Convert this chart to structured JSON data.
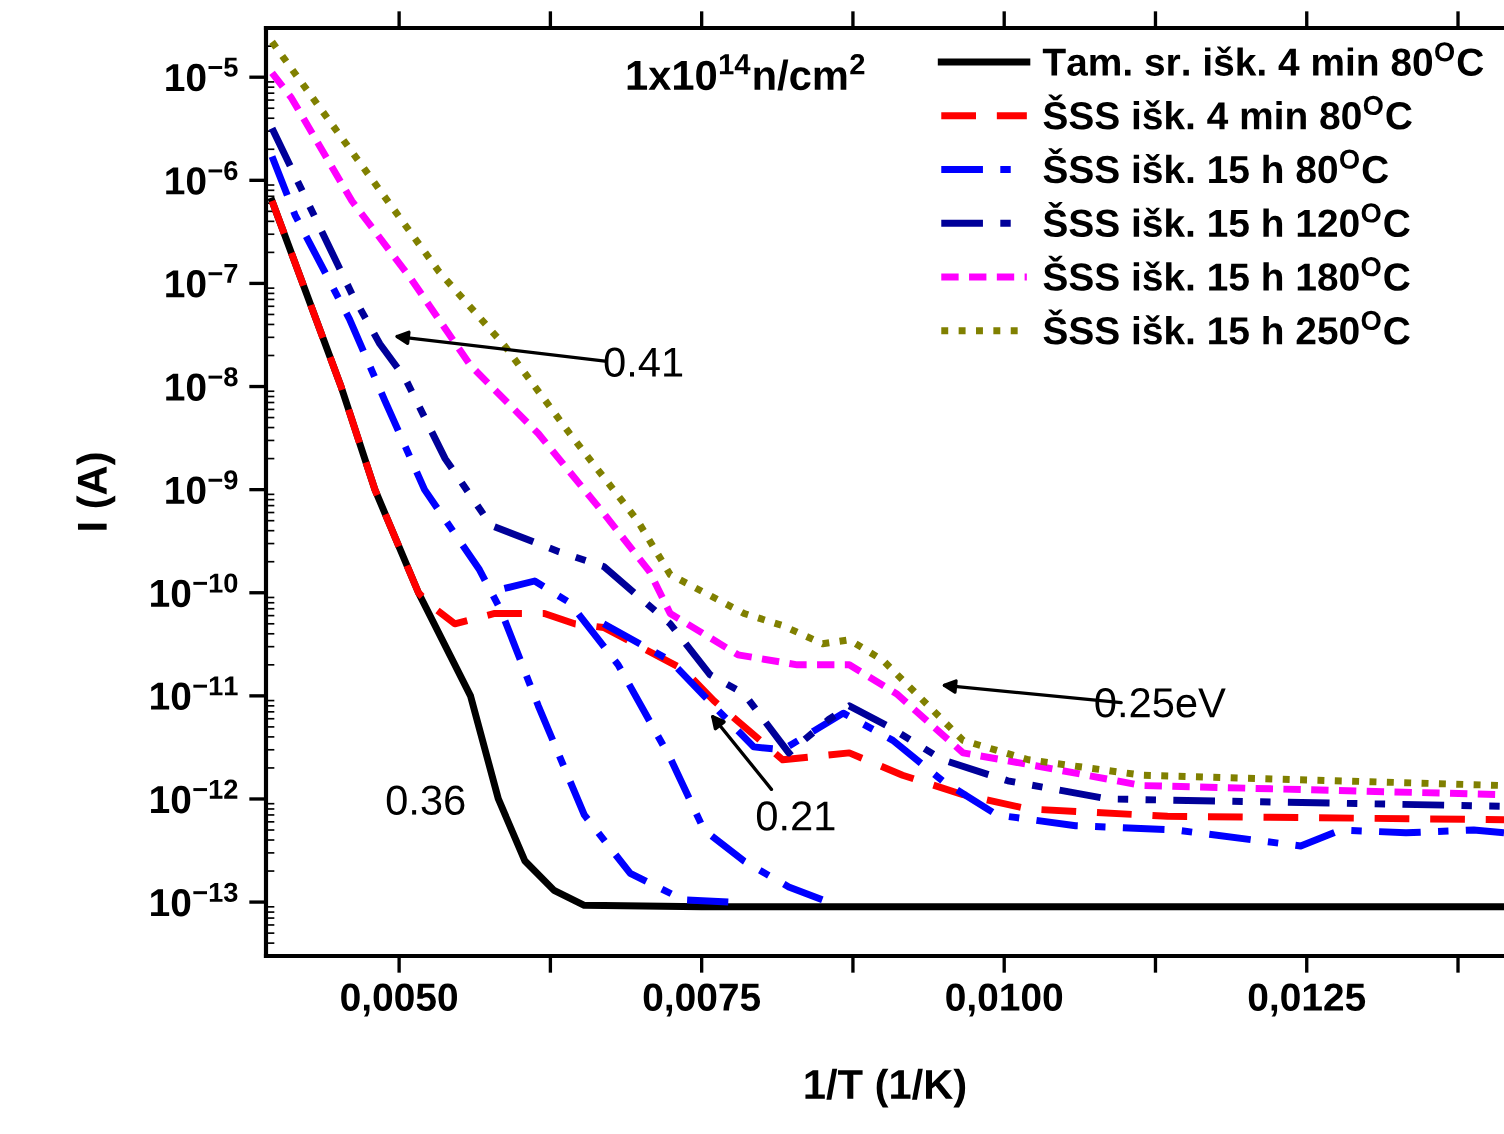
{
  "chart_data": {
    "type": "line",
    "xlabel": "1/T (1/K)",
    "ylabel": "I (A)",
    "log": "y",
    "xlim": [
      0.0039,
      0.01413
    ],
    "ylim": [
      3e-14,
      3e-05
    ],
    "xticks": [
      {
        "value": 0.005,
        "label": "0,0050"
      },
      {
        "value": 0.00625,
        "label": null
      },
      {
        "value": 0.0075,
        "label": "0,0075"
      },
      {
        "value": 0.00875,
        "label": null
      },
      {
        "value": 0.01,
        "label": "0,0100"
      },
      {
        "value": 0.01125,
        "label": null
      },
      {
        "value": 0.0125,
        "label": "0,0125"
      },
      {
        "value": 0.01375,
        "label": null
      }
    ],
    "yticks": [
      {
        "value": 1e-13,
        "label": "10$^{−13}$"
      },
      {
        "value": 1e-12,
        "label": "10$^{−12}$"
      },
      {
        "value": 1e-11,
        "label": "10$^{−11}$"
      },
      {
        "value": 1e-10,
        "label": "10$^{−10}$"
      },
      {
        "value": 1e-09,
        "label": "10$^{−9}$"
      },
      {
        "value": 1e-08,
        "label": "10$^{−8}$"
      },
      {
        "value": 1e-07,
        "label": "10$^{−7}$"
      },
      {
        "value": 1e-06,
        "label": "10$^{−6}$"
      },
      {
        "value": 1e-05,
        "label": "10$^{−5}$"
      }
    ],
    "grid": false,
    "legend": "top right",
    "marker": "none",
    "series": [
      {
        "name": "Tam. sr. išk. 4 min 80$^{O}$C",
        "color": "#000000",
        "line_style": "solid",
        "x": [
          0.00395,
          0.00452,
          0.0048,
          0.00516,
          0.00559,
          0.00582,
          0.00604,
          0.00628,
          0.00653,
          0.0075,
          0.01,
          0.01413
        ],
        "values": [
          6.3e-07,
          1e-08,
          1e-09,
          1e-10,
          1e-11,
          1e-12,
          2.5e-13,
          1.3e-13,
          9.3e-14,
          9e-14,
          9e-14,
          9e-14
        ]
      },
      {
        "name": "ŠSS išk. 4 min 80$^{O}$C",
        "color": "#ff0000",
        "line_style": "dashed",
        "x": [
          0.00395,
          0.00452,
          0.0048,
          0.00516,
          0.00526,
          0.00546,
          0.00579,
          0.0062,
          0.00645,
          0.00669,
          0.00735,
          0.0076,
          0.00817,
          0.00872,
          0.00916,
          0.00966,
          0.0102,
          0.01135,
          0.01413
        ],
        "values": [
          6.3e-07,
          1e-08,
          1e-09,
          1e-10,
          7.6e-11,
          5e-11,
          6.3e-11,
          6.3e-11,
          5e-11,
          4.6e-11,
          1.8e-11,
          9e-12,
          2.4e-12,
          2.8e-12,
          1.7e-12,
          1.1e-12,
          8e-13,
          6.8e-13,
          6.3e-13
        ]
      },
      {
        "name": "ŠSS išk. 15 h 80$^{O}$C",
        "color": "#0000ff",
        "line_style": "dashdot",
        "x": [
          0.00395,
          0.00414,
          0.00459,
          0.00488,
          0.00521,
          0.00566,
          0.00584,
          0.00615,
          0.00653,
          0.00691,
          0.00735,
          0.00772
        ],
        "values": [
          1.7e-06,
          4.6e-07,
          4.5e-08,
          7.4e-09,
          1e-09,
          1.7e-10,
          6.8e-11,
          8e-12,
          7e-13,
          1.9e-13,
          1.05e-13,
          1e-13
        ]
      },
      {
        "color": "#0000ff",
        "line_style": "dashdot",
        "x": [
          0.00587,
          0.00612,
          0.00641,
          0.00681,
          0.00724,
          0.00752,
          0.00785,
          0.00822,
          0.0085
        ],
        "values": [
          1.1e-10,
          1.3e-10,
          8e-11,
          2e-11,
          2.5e-12,
          5e-13,
          2.5e-13,
          1.4e-13,
          1.05e-13
        ]
      },
      {
        "color": "#0000ff",
        "line_style": "dashdot",
        "x": [
          0.00669,
          0.00724,
          0.00752,
          0.00793,
          0.00817,
          0.00867,
          0.00908,
          0.00949,
          0.00994,
          0.01059,
          0.01142,
          0.01245,
          0.01278,
          0.01332,
          0.01388,
          0.01413
        ],
        "values": [
          5e-11,
          2.2e-11,
          1e-11,
          3.2e-12,
          3e-12,
          6.8e-12,
          3.7e-12,
          1.5e-12,
          7e-13,
          5.5e-13,
          5e-13,
          3.5e-13,
          5e-13,
          4.7e-13,
          5e-13,
          4.7e-13
        ]
      },
      {
        "name": "ŠSS išk. 15 h 120$^{O}$C",
        "color": "#000099",
        "line_style": "dashdotdot",
        "x": [
          0.00395,
          0.00461,
          0.00484,
          0.00505,
          0.00538,
          0.00576,
          0.00632,
          0.00669,
          0.00724,
          0.00757,
          0.00785,
          0.00822,
          0.00855,
          0.00872,
          0.00905,
          0.00949,
          0.01003,
          0.01086,
          0.01413
        ],
        "values": [
          3.2e-06,
          7.9e-08,
          2.6e-08,
          1.2e-08,
          2e-09,
          4.5e-10,
          2.5e-10,
          1.8e-10,
          5e-11,
          1.6e-11,
          1.05e-11,
          2.8e-12,
          5.9e-12,
          8e-12,
          5e-12,
          2.4e-12,
          1.5e-12,
          1e-12,
          8.5e-13
        ]
      },
      {
        "name": "ŠSS išk. 15 h 180$^{O}$C",
        "color": "#ff00ff",
        "line_style": "dashed",
        "x": [
          0.00395,
          0.00411,
          0.00461,
          0.0051,
          0.00559,
          0.00615,
          0.00669,
          0.00707,
          0.00724,
          0.0078,
          0.00829,
          0.00872,
          0.00911,
          0.00966,
          0.01026,
          0.01114,
          0.01413
        ],
        "values": [
          1.1e-05,
          6.3e-06,
          6.3e-07,
          1.1e-07,
          1.6e-08,
          3.5e-09,
          5.9e-10,
          1.6e-10,
          6.3e-11,
          2.5e-11,
          2e-11,
          2e-11,
          1.05e-11,
          2.8e-12,
          2.1e-12,
          1.35e-12,
          1.1e-12
        ]
      },
      {
        "name": "ŠSS išk. 15 h 250$^{O}$C",
        "color": "#808000",
        "line_style": "dotted",
        "x": [
          0.00395,
          0.00533,
          0.00587,
          0.00641,
          0.00697,
          0.00724,
          0.00785,
          0.00817,
          0.0085,
          0.00872,
          0.009,
          0.00966,
          0.0102,
          0.01114,
          0.01413
        ],
        "values": [
          2.2e-05,
          1.3e-07,
          2.5e-08,
          3.5e-09,
          5e-10,
          1.5e-10,
          6.3e-11,
          4.8e-11,
          3.2e-11,
          3.5e-11,
          2.2e-11,
          3.7e-12,
          2.4e-12,
          1.7e-12,
          1.35e-12
        ]
      }
    ],
    "annotations": [
      "1x10$^{14}$n/cm$^{2}$",
      "0.41",
      "0.36",
      "0.21",
      "0.25eV"
    ]
  }
}
